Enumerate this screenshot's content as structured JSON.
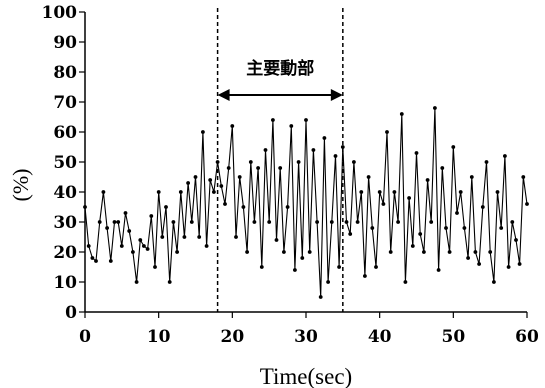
{
  "chart_data": {
    "type": "line",
    "title": "",
    "xlabel": "Time(sec)",
    "ylabel": "(%)",
    "xlim": [
      0,
      60
    ],
    "ylim": [
      0,
      100
    ],
    "xticks": [
      "0",
      "10",
      "20",
      "30",
      "40",
      "50",
      "60"
    ],
    "yticks": [
      "0",
      "10",
      "20",
      "30",
      "40",
      "50",
      "60",
      "70",
      "80",
      "90",
      "100"
    ],
    "grid": false,
    "legend": "none",
    "annotation": {
      "label": "主要動部",
      "x_start": 18,
      "x_end": 35
    },
    "series": [
      {
        "x": [
          0.0,
          0.5,
          1.0,
          1.5,
          2.0,
          2.5,
          3.0,
          3.5,
          4.0,
          4.5,
          5.0,
          5.5,
          6.0,
          6.5,
          7.0,
          7.5,
          8.0,
          8.5,
          9.0,
          9.5,
          10.0,
          10.5,
          11.0,
          11.5,
          12.0,
          12.5,
          13.0,
          13.5,
          14.0,
          14.5,
          15.0,
          15.5,
          16.0,
          16.5,
          17.0,
          17.5,
          18.0,
          18.5,
          19.0,
          19.5,
          20.0,
          20.5,
          21.0,
          21.5,
          22.0,
          22.5,
          23.0,
          23.5,
          24.0,
          24.5,
          25.0,
          25.5,
          26.0,
          26.5,
          27.0,
          27.5,
          28.0,
          28.5,
          29.0,
          29.5,
          30.0,
          30.5,
          31.0,
          31.5,
          32.0,
          32.5,
          33.0,
          33.5,
          34.0,
          34.5,
          35.0,
          35.5,
          36.0,
          36.5,
          37.0,
          37.5,
          38.0,
          38.5,
          39.0,
          39.5,
          40.0,
          40.5,
          41.0,
          41.5,
          42.0,
          42.5,
          43.0,
          43.5,
          44.0,
          44.5,
          45.0,
          45.5,
          46.0,
          46.5,
          47.0,
          47.5,
          48.0,
          48.5,
          49.0,
          49.5,
          50.0,
          50.5,
          51.0,
          51.5,
          52.0,
          52.5,
          53.0,
          53.5,
          54.0,
          54.5,
          55.0,
          55.5,
          56.0,
          56.5,
          57.0,
          57.5,
          58.0,
          58.5,
          59.0,
          59.5,
          60.0
        ],
        "y": [
          35,
          22,
          18,
          17,
          30,
          40,
          28,
          17,
          30,
          30,
          22,
          33,
          27,
          20,
          10,
          24,
          22,
          21,
          32,
          15,
          40,
          25,
          35,
          10,
          30,
          20,
          40,
          25,
          43,
          30,
          45,
          25,
          60,
          22,
          44,
          40,
          50,
          42,
          36,
          48,
          62,
          25,
          45,
          35,
          20,
          50,
          30,
          48,
          15,
          54,
          30,
          64,
          24,
          48,
          20,
          35,
          62,
          14,
          50,
          18,
          64,
          20,
          54,
          30,
          5,
          58,
          10,
          30,
          52,
          15,
          55,
          30,
          26,
          50,
          30,
          40,
          12,
          45,
          28,
          15,
          40,
          36,
          60,
          20,
          40,
          30,
          66,
          10,
          38,
          22,
          53,
          26,
          20,
          44,
          30,
          68,
          14,
          48,
          28,
          20,
          55,
          33,
          40,
          28,
          18,
          45,
          20,
          16,
          35,
          50,
          20,
          10,
          40,
          28,
          52,
          15,
          30,
          24,
          16,
          45,
          36
        ]
      }
    ]
  }
}
